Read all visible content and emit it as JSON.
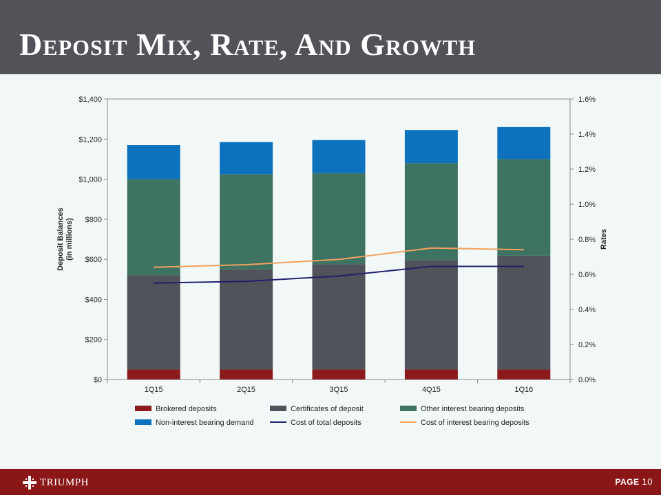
{
  "header": {
    "title": "Deposit Mix, Rate, And Growth"
  },
  "footer": {
    "logo_text": "TRIUMPH",
    "page_label": "PAGE",
    "page_number": "10"
  },
  "colors": {
    "header_bg": "#515358",
    "footer_bg": "#8a1618",
    "brokered": "#8b1a1d",
    "certificates": "#50535a",
    "other_interest": "#3e7363",
    "non_interest": "#0d72bd",
    "cost_total": "#1f1f6e",
    "cost_interest": "#f2a15c"
  },
  "chart_data": {
    "type": "bar",
    "stacked": true,
    "categories": [
      "1Q15",
      "2Q15",
      "3Q15",
      "4Q15",
      "1Q16"
    ],
    "series": [
      {
        "name": "Brokered deposits",
        "kind": "bar",
        "color": "#8b1a1d",
        "values": [
          50,
          50,
          50,
          50,
          50
        ]
      },
      {
        "name": "Certificates of deposit",
        "kind": "bar",
        "color": "#50535a",
        "values": [
          470,
          500,
          525,
          545,
          568
        ]
      },
      {
        "name": "Other interest bearing deposits",
        "kind": "bar",
        "color": "#3e7363",
        "values": [
          480,
          475,
          455,
          485,
          482
        ]
      },
      {
        "name": "Non-interest bearing demand",
        "kind": "bar",
        "color": "#0d72bd",
        "values": [
          170,
          160,
          165,
          165,
          160
        ]
      },
      {
        "name": "Cost of total deposits",
        "kind": "line",
        "axis": "right",
        "color": "#1f1f6e",
        "values": [
          0.55,
          0.56,
          0.59,
          0.645,
          0.645
        ]
      },
      {
        "name": "Cost of interest bearing deposits",
        "kind": "line",
        "axis": "right",
        "color": "#f2a15c",
        "values": [
          0.64,
          0.655,
          0.685,
          0.75,
          0.74
        ]
      }
    ],
    "ylabel": "Deposit Balances (in millions)",
    "ylabel_lines": [
      "Deposit Balances",
      "(in millions)"
    ],
    "y2label": "Rates",
    "ylim": [
      0,
      1400
    ],
    "y2lim": [
      0,
      1.6
    ],
    "yticks": [
      "$0",
      "$200",
      "$400",
      "$600",
      "$800",
      "$1,000",
      "$1,200",
      "$1,400"
    ],
    "y2ticks": [
      "0.0%",
      "0.2%",
      "0.4%",
      "0.6%",
      "0.8%",
      "1.0%",
      "1.2%",
      "1.4%",
      "1.6%"
    ],
    "legend_position": "bottom",
    "grid": false
  }
}
